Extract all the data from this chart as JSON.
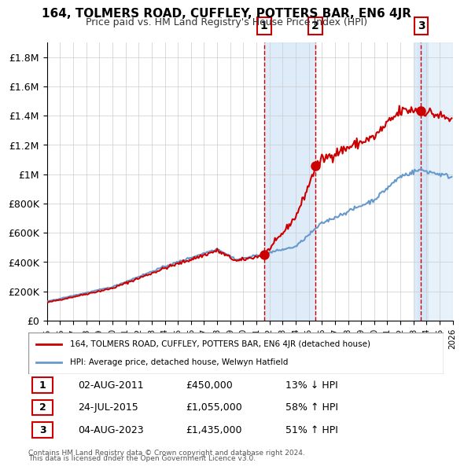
{
  "title": "164, TOLMERS ROAD, CUFFLEY, POTTERS BAR, EN6 4JR",
  "subtitle": "Price paid vs. HM Land Registry's House Price Index (HPI)",
  "ylim": [
    0,
    1900000
  ],
  "yticks": [
    0,
    200000,
    400000,
    600000,
    800000,
    1000000,
    1200000,
    1400000,
    1600000,
    1800000
  ],
  "ytick_labels": [
    "£0",
    "£200K",
    "£400K",
    "£600K",
    "£800K",
    "£1M",
    "£1.2M",
    "£1.4M",
    "£1.6M",
    "£1.8M"
  ],
  "x_start_year": 1995,
  "x_end_year": 2026,
  "sale_dates": [
    "2011-08-02",
    "2015-07-24",
    "2023-08-04"
  ],
  "sale_prices": [
    450000,
    1055000,
    1435000
  ],
  "sale_labels": [
    "1",
    "2",
    "3"
  ],
  "sale_info": [
    {
      "num": "1",
      "date": "02-AUG-2011",
      "price": "£450,000",
      "change": "13% ↓ HPI"
    },
    {
      "num": "2",
      "date": "24-JUL-2015",
      "price": "£1,055,000",
      "change": "58% ↑ HPI"
    },
    {
      "num": "3",
      "date": "04-AUG-2023",
      "price": "£1,435,000",
      "change": "51% ↑ HPI"
    }
  ],
  "legend_line1": "164, TOLMERS ROAD, CUFFLEY, POTTERS BAR, EN6 4JR (detached house)",
  "legend_line2": "HPI: Average price, detached house, Welwyn Hatfield",
  "footer1": "Contains HM Land Registry data © Crown copyright and database right 2024.",
  "footer2": "This data is licensed under the Open Government Licence v3.0.",
  "price_line_color": "#cc0000",
  "hpi_line_color": "#6699cc",
  "shade_color": "#d0e4f7",
  "vline_color": "#cc0000",
  "sale_marker_color": "#cc0000",
  "background_color": "#ffffff",
  "grid_color": "#cccccc"
}
